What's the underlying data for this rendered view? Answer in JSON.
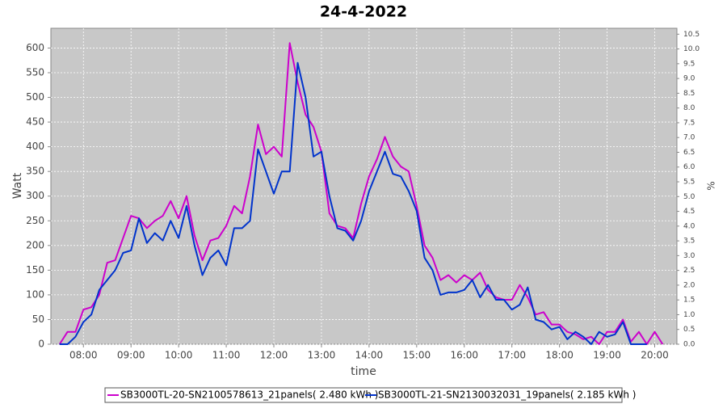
{
  "chart_data": {
    "type": "line",
    "title": "24-4-2022",
    "x_label": "time",
    "y_label": "Watt",
    "y2_label": "%",
    "x": [
      "07:30",
      "07:40",
      "07:50",
      "08:00",
      "08:10",
      "08:20",
      "08:30",
      "08:40",
      "08:50",
      "09:00",
      "09:10",
      "09:20",
      "09:30",
      "09:40",
      "09:50",
      "10:00",
      "10:10",
      "10:20",
      "10:30",
      "10:40",
      "10:50",
      "11:00",
      "11:10",
      "11:20",
      "11:30",
      "11:40",
      "11:50",
      "12:00",
      "12:10",
      "12:20",
      "12:30",
      "12:40",
      "12:50",
      "13:00",
      "13:10",
      "13:20",
      "13:30",
      "13:40",
      "13:50",
      "14:00",
      "14:10",
      "14:20",
      "14:30",
      "14:40",
      "14:50",
      "15:00",
      "15:10",
      "15:20",
      "15:30",
      "15:40",
      "15:50",
      "16:00",
      "16:10",
      "16:20",
      "16:30",
      "16:40",
      "16:50",
      "17:00",
      "17:10",
      "17:20",
      "17:30",
      "17:40",
      "17:50",
      "18:00",
      "18:10",
      "18:20",
      "18:30",
      "18:40",
      "18:50",
      "19:00",
      "19:10",
      "19:20",
      "19:30",
      "19:40",
      "19:50",
      "20:00",
      "20:10"
    ],
    "series": [
      {
        "name": "SB3000TL-20-SN2100578613_21panels( 2.480 kWh )",
        "color": "#cc00cc",
        "values": [
          0,
          25,
          25,
          70,
          75,
          100,
          165,
          170,
          215,
          260,
          255,
          235,
          250,
          260,
          290,
          255,
          300,
          220,
          170,
          210,
          215,
          240,
          280,
          265,
          340,
          445,
          385,
          400,
          380,
          610,
          530,
          465,
          440,
          390,
          265,
          240,
          235,
          215,
          285,
          340,
          375,
          420,
          380,
          360,
          350,
          280,
          200,
          175,
          130,
          140,
          125,
          140,
          130,
          145,
          110,
          95,
          90,
          90,
          120,
          95,
          60,
          65,
          40,
          40,
          25,
          20,
          10,
          15,
          0,
          25,
          25,
          50,
          5,
          25,
          0,
          25,
          0
        ]
      },
      {
        "name": "SB3000TL-21-SN2130032031_19panels( 2.185 kWh )",
        "color": "#0033cc",
        "values": [
          0,
          0,
          15,
          45,
          60,
          110,
          130,
          150,
          185,
          190,
          255,
          205,
          225,
          210,
          250,
          215,
          280,
          200,
          140,
          175,
          190,
          160,
          235,
          235,
          250,
          395,
          350,
          305,
          350,
          350,
          570,
          500,
          380,
          390,
          300,
          235,
          230,
          210,
          250,
          310,
          350,
          390,
          345,
          340,
          310,
          270,
          175,
          150,
          100,
          105,
          105,
          110,
          130,
          95,
          120,
          90,
          90,
          70,
          80,
          115,
          50,
          45,
          30,
          35,
          10,
          25,
          15,
          0,
          25,
          15,
          20,
          45,
          0,
          0,
          0,
          null,
          null
        ]
      }
    ],
    "xlim": [
      "07:19",
      "20:28"
    ],
    "xticks": [
      "08:00",
      "09:00",
      "10:00",
      "11:00",
      "12:00",
      "13:00",
      "14:00",
      "15:00",
      "16:00",
      "17:00",
      "18:00",
      "19:00",
      "20:00"
    ],
    "ylim": [
      0,
      640
    ],
    "yticks": [
      0,
      50,
      100,
      150,
      200,
      250,
      300,
      350,
      400,
      450,
      500,
      550,
      600
    ],
    "y2lim": [
      0,
      10.7
    ],
    "y2ticks": [
      {
        "value": 0,
        "label": "0.0"
      },
      0.5,
      {
        "value": 1,
        "label": "1.0"
      },
      1.5,
      {
        "value": 2,
        "label": "2.0"
      },
      2.5,
      {
        "value": 3,
        "label": "3.0"
      },
      3.5,
      {
        "value": 4,
        "label": "4.0"
      },
      4.5,
      {
        "value": 5,
        "label": "5.0"
      },
      5.5,
      {
        "value": 6,
        "label": "6.0"
      },
      6.5,
      {
        "value": 7,
        "label": "7.0"
      },
      7.5,
      {
        "value": 8,
        "label": "8.0"
      },
      8.5,
      {
        "value": 9,
        "label": "9.0"
      },
      9.5,
      {
        "value": 10,
        "label": "10.0"
      },
      10.5
    ],
    "grid": true
  }
}
